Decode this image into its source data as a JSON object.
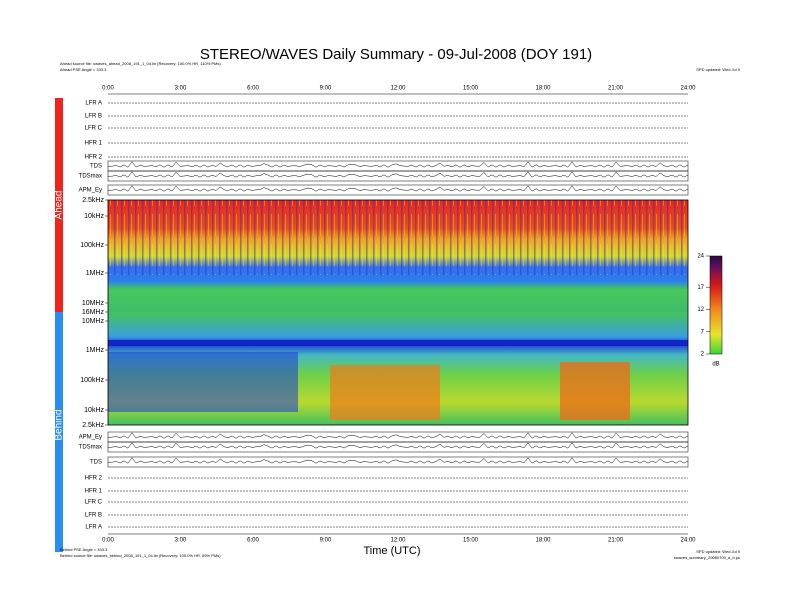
{
  "title": "STEREO/WAVES Daily Summary - 09-Jul-2008 (DOY 191)",
  "header": {
    "ahead_source": "Ahead source file: swaves_ahead_2008_191_1_04.lin (Recovery: 100.0% HR, 110% PMs)",
    "ahead_angle": "Ahead PSE Angle = 333.3",
    "right": "SPD updated: Wed Jul 9"
  },
  "time_ticks": [
    "0:00",
    "3:00",
    "6:00",
    "9:00",
    "12:00",
    "15:00",
    "18:00",
    "21:00",
    "24:00"
  ],
  "x_label": "Time (UTC)",
  "ahead_panels": [
    "LFR A",
    "LFR B",
    "LFR C",
    "HFR 1",
    "HFR 2",
    "TDS",
    "TDSmax",
    "APM_Ey"
  ],
  "behind_panels": [
    "APM_Ey",
    "TDSmax",
    "TDS",
    "HFR 2",
    "HFR 1",
    "LFR C",
    "LFR B",
    "LFR A"
  ],
  "ahead_freq_labels": [
    "2.5kHz",
    "10kHz",
    "100kHz",
    "1MHz",
    "10MHz",
    "16MHz"
  ],
  "behind_freq_labels": [
    "10MHz",
    "1MHz",
    "100kHz",
    "10kHz",
    "2.5kHz"
  ],
  "side_labels": [
    "Ahead",
    "Behind"
  ],
  "colorbar": {
    "lim": [
      2,
      24
    ],
    "ticks": [
      24,
      17,
      12,
      7,
      2
    ],
    "unit": "dB"
  },
  "footer": {
    "behind_angle": "Behind PSE Angle = 333.3",
    "behind_source": "Behind source file: swaves_behind_2008_191_1_04.lin (Recovery: 100.0% HR, 89% PMs)",
    "right": "SPD updated: Wed Jul 9",
    "right2": "swaves_summary_20080709_a_b.ps"
  }
}
